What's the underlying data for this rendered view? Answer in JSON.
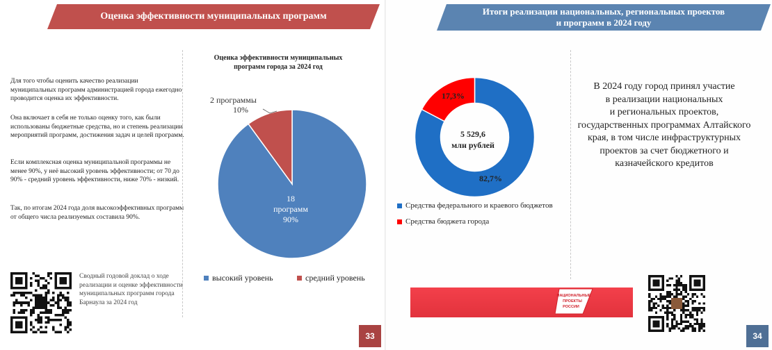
{
  "left_page": {
    "banner_title": "Оценка эффективности муниципальных программ",
    "paragraphs": [
      "Для того чтобы оценить качество реализации муниципальных программ администрацией города ежегодно проводится оценка их эффективности.",
      "Она включает в себя не только оценку того, как были использованы бюджетные средства, но и степень реализации мероприятий программ, достижения задач и целей программ.",
      "Если комплексная оценка муниципальной программы не менее  90%, у неё высокий уровень эффективности;  от 70 до 90% - средний уровень эффективности, ниже 70% - низкий.",
      "Так, по итогам 2024 года доля высокоэффективных программ от общего числа реализуемых составила 90%."
    ],
    "qr_caption": "Сводный годовой доклад о ходе реализации и оценке эффективности муниципальных программ города Барнаула за 2024 год",
    "page_number": "33"
  },
  "pie_chart": {
    "title": "Оценка эффективности муниципальных программ города за 2024 год",
    "slice_high_count": "18",
    "slice_high_unit": "программ",
    "slice_high_pct": "90%",
    "slice_mid_label": "2 программы",
    "slice_mid_pct": "10%",
    "legend_high": "высокий уровень",
    "legend_mid": "средний уровень",
    "colors": {
      "high": "#4f81bd",
      "mid": "#c0504d"
    }
  },
  "right_page": {
    "banner_line1": "Итоги реализации национальных, региональных проектов",
    "banner_line2": "и программ в 2024 году",
    "donut_center_value": "5 529,6",
    "donut_center_unit": "млн рублей",
    "pct_federal": "82,7%",
    "pct_city": "17,3%",
    "legend_federal": "Средства федерального и краевого бюджетов",
    "legend_city": "Средства бюджета города",
    "colors": {
      "federal": "#1f6fc5",
      "city": "#ff0000"
    },
    "text_lines": [
      "В 2024 году город принял участие",
      "в реализации национальных",
      "и региональных проектов,",
      "государственных программах Алтайского",
      "края, в том числе инфраструктурных",
      "проектов за счет бюджетного и",
      "казначейского кредитов"
    ],
    "logo_text": [
      "НАЦИОНАЛЬНЫЕ",
      "ПРОЕКТЫ",
      "РОССИИ"
    ],
    "page_number": "34"
  },
  "chart_data": [
    {
      "type": "pie",
      "title": "Оценка эффективности муниципальных программ города за 2024 год",
      "categories": [
        "высокий уровень",
        "средний уровень"
      ],
      "values": [
        90,
        10
      ],
      "counts": [
        18,
        2
      ],
      "legend": "bottom"
    },
    {
      "type": "pie",
      "title": "",
      "categories": [
        "Средства федерального и краевого бюджетов",
        "Средства бюджета города"
      ],
      "values": [
        82.7,
        17.3
      ],
      "total": "5 529,6 млн рублей",
      "legend": "bottom"
    }
  ]
}
